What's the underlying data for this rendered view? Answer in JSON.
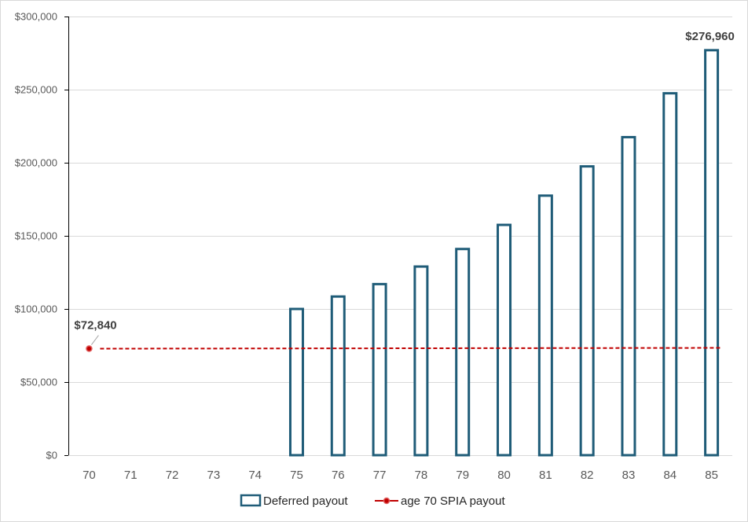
{
  "chart_data": {
    "type": "bar",
    "categories": [
      "70",
      "71",
      "72",
      "73",
      "74",
      "75",
      "76",
      "77",
      "78",
      "79",
      "80",
      "81",
      "82",
      "83",
      "84",
      "85"
    ],
    "series": [
      {
        "name": "Deferred payout",
        "type": "bar",
        "values": [
          0,
          0,
          0,
          0,
          0,
          100000,
          108500,
          117000,
          129000,
          141000,
          157500,
          177500,
          197500,
          217500,
          247500,
          276960
        ],
        "color": "#1f5c78"
      },
      {
        "name": "age 70 SPIA payout",
        "type": "line",
        "values": [
          72840,
          72840,
          72840,
          72840,
          72840,
          72840,
          72840,
          72840,
          72840,
          72840,
          72840,
          72840,
          72840,
          72840,
          72840,
          72840
        ],
        "color": "#c00000",
        "line_style": "dashed"
      }
    ],
    "y_ticks": [
      "$0",
      "$50,000",
      "$100,000",
      "$150,000",
      "$200,000",
      "$250,000",
      "$300,000"
    ],
    "ylim": [
      0,
      300000
    ],
    "data_labels": [
      {
        "series": "age 70 SPIA payout",
        "category": "70",
        "text": "$72,840"
      },
      {
        "series": "Deferred payout",
        "category": "85",
        "text": "$276,960"
      }
    ],
    "grid": true,
    "legend_position": "bottom",
    "title": "",
    "xlabel": "",
    "ylabel": ""
  }
}
